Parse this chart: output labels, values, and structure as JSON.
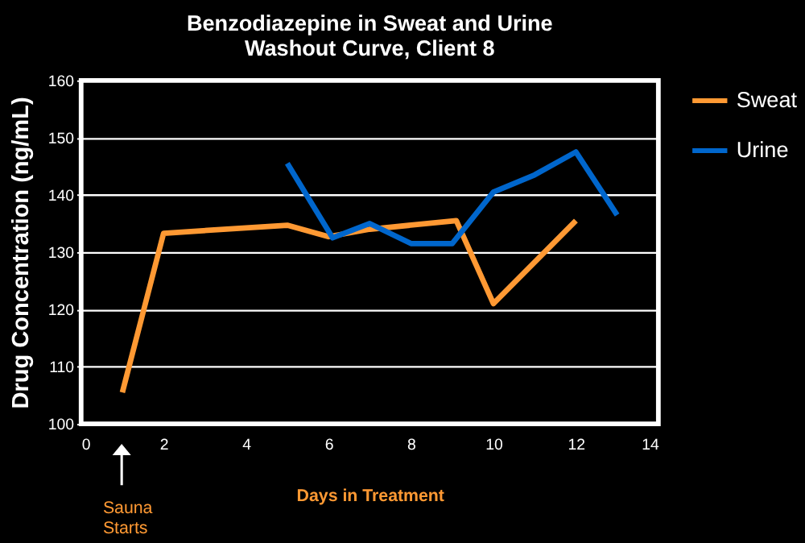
{
  "chart_data": {
    "type": "line",
    "title": [
      "Benzodiazepine in Sweat and Urine",
      "Washout Curve, Client 8"
    ],
    "xlabel": "Days in Treatment",
    "ylabel": "Drug Concentration (ng/mL)",
    "series": [
      {
        "name": "Sweat",
        "color": "#ff9933",
        "x": [
          1,
          2,
          5,
          6,
          7,
          9.1,
          10,
          12
        ],
        "values": [
          105.5,
          133.3,
          134.7,
          132.7,
          134,
          135.5,
          121,
          135.5
        ]
      },
      {
        "name": "Urine",
        "color": "#0066cc",
        "x": [
          5,
          6.1,
          7,
          8,
          9,
          10,
          11,
          12,
          13
        ],
        "values": [
          145.5,
          132.5,
          135,
          131.5,
          131.5,
          140.5,
          143.5,
          147.5,
          136.5
        ]
      }
    ],
    "xlim": [
      0,
      14
    ],
    "xticks": [
      0,
      2,
      4,
      6,
      8,
      10,
      12,
      14
    ],
    "ylim": [
      100,
      160
    ],
    "yticks": [
      100,
      110,
      120,
      130,
      140,
      150,
      160
    ],
    "grid": "y",
    "legend": "top right",
    "marker": "none",
    "line_style": "solid",
    "annotations": [
      "Sauna Starts"
    ]
  }
}
